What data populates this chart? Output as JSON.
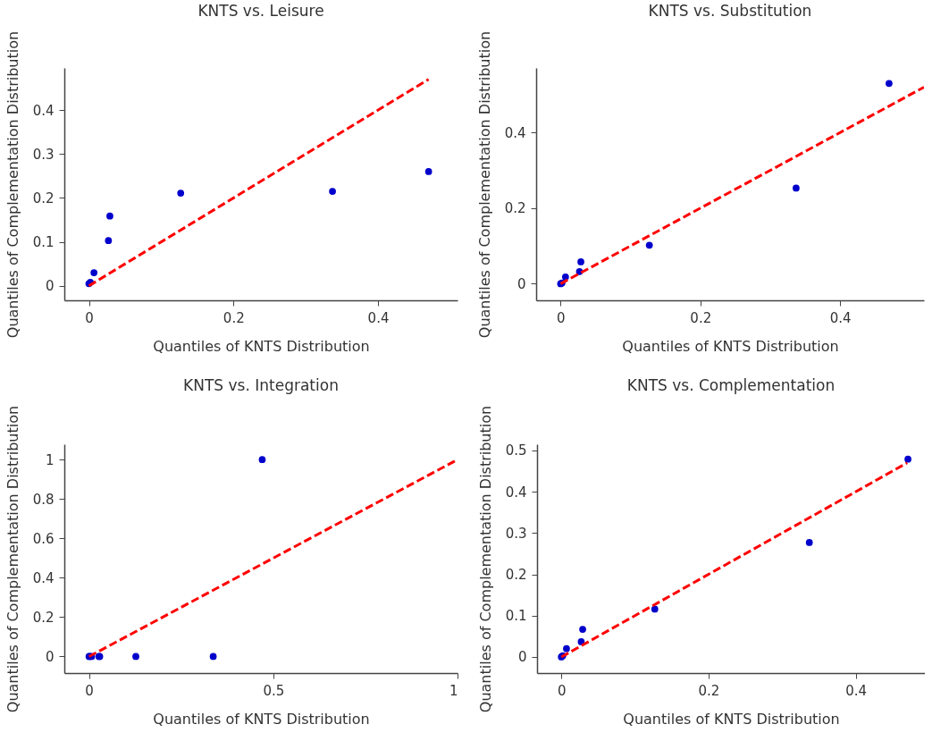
{
  "chart_data": [
    {
      "type": "scatter",
      "title": "KNTS vs. Leisure",
      "xlabel": "Quantiles of KNTS Distribution",
      "ylabel": "Quantiles of Complementation Distribution",
      "xlim": [
        -0.034,
        0.51
      ],
      "ylim": [
        -0.033,
        0.496
      ],
      "xticks": [
        0,
        0.2,
        0.4
      ],
      "yticks": [
        0,
        0.1,
        0.2,
        0.3,
        0.4
      ],
      "series": [
        {
          "type": "scatter",
          "marker": "circle",
          "color": "#0000cc",
          "x": [
            0,
            0.002,
            0.007,
            0.027,
            0.029,
            0.127,
            0.337,
            0.47
          ],
          "values": [
            0.005,
            0.008,
            0.03,
            0.103,
            0.159,
            0.211,
            0.215,
            0.26
          ]
        },
        {
          "type": "line",
          "color": "#ff0000",
          "line_style": "dashed",
          "x": [
            0,
            0.47
          ],
          "values": [
            0,
            0.47
          ]
        }
      ]
    },
    {
      "type": "scatter",
      "title": "KNTS vs. Substitution",
      "xlabel": "Quantiles of KNTS Distribution",
      "ylabel": "Quantiles of Complementation Distribution",
      "xlim": [
        -0.035,
        0.52
      ],
      "ylim": [
        -0.044,
        0.571
      ],
      "xticks": [
        0,
        0.2,
        0.4
      ],
      "yticks": [
        0,
        0.2,
        0.4
      ],
      "series": [
        {
          "type": "scatter",
          "marker": "circle",
          "color": "#0000cc",
          "x": [
            0,
            0.002,
            0.007,
            0.027,
            0.029,
            0.127,
            0.337,
            0.47
          ],
          "values": [
            0,
            0.002,
            0.018,
            0.032,
            0.058,
            0.102,
            0.253,
            0.53
          ]
        },
        {
          "type": "line",
          "color": "#ff0000",
          "line_style": "dashed",
          "x": [
            0,
            0.52
          ],
          "values": [
            0,
            0.52
          ]
        }
      ]
    },
    {
      "type": "scatter",
      "title": "KNTS vs. Integration",
      "xlabel": "Quantiles of KNTS Distribution",
      "ylabel": "Quantiles of Complementation Distribution",
      "xlim": [
        -0.067,
        1
      ],
      "ylim": [
        -0.084,
        1.078
      ],
      "xticks": [
        0,
        0.5,
        1
      ],
      "yticks": [
        0,
        0.2,
        0.4,
        0.6,
        0.8,
        1
      ],
      "series": [
        {
          "type": "scatter",
          "marker": "circle",
          "color": "#0000cc",
          "x": [
            0,
            0.002,
            0.007,
            0.027,
            0.029,
            0.127,
            0.337,
            0.47
          ],
          "values": [
            0,
            0,
            0,
            0,
            0,
            0,
            0,
            1
          ]
        },
        {
          "type": "line",
          "color": "#ff0000",
          "line_style": "dashed",
          "x": [
            0,
            1
          ],
          "values": [
            0,
            1
          ]
        }
      ]
    },
    {
      "type": "scatter",
      "title": "KNTS vs. Complementation",
      "xlabel": "Quantiles of KNTS Distribution",
      "ylabel": "Quantiles of Complementation Distribution",
      "xlim": [
        -0.033,
        0.494
      ],
      "ylim": [
        -0.039,
        0.515
      ],
      "xticks": [
        0,
        0.2,
        0.4
      ],
      "yticks": [
        0,
        0.1,
        0.2,
        0.3,
        0.4,
        0.5
      ],
      "series": [
        {
          "type": "scatter",
          "marker": "circle",
          "color": "#0000cc",
          "x": [
            0,
            0.002,
            0.007,
            0.027,
            0.029,
            0.127,
            0.337,
            0.471
          ],
          "values": [
            0,
            0.003,
            0.02,
            0.037,
            0.067,
            0.116,
            0.277,
            0.479
          ]
        },
        {
          "type": "line",
          "color": "#ff0000",
          "line_style": "dashed",
          "x": [
            0,
            0.47
          ],
          "values": [
            0,
            0.47
          ]
        }
      ]
    }
  ]
}
